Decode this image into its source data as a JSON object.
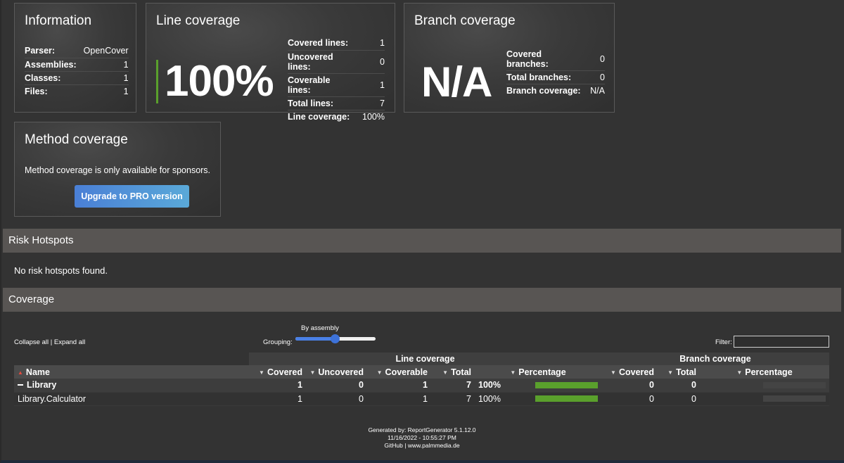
{
  "information": {
    "title": "Information",
    "rows": [
      {
        "key": "Parser:",
        "value": "OpenCover"
      },
      {
        "key": "Assemblies:",
        "value": "1"
      },
      {
        "key": "Classes:",
        "value": "1"
      },
      {
        "key": "Files:",
        "value": "1"
      }
    ]
  },
  "line_coverage": {
    "title": "Line coverage",
    "big_value": "100%",
    "fill_fraction": 1.0,
    "rows": [
      {
        "key": "Covered lines:",
        "value": "1"
      },
      {
        "key": "Uncovered lines:",
        "value": "0"
      },
      {
        "key": "Coverable lines:",
        "value": "1"
      },
      {
        "key": "Total lines:",
        "value": "7"
      },
      {
        "key": "Line coverage:",
        "value": "100%"
      }
    ]
  },
  "branch_coverage": {
    "title": "Branch coverage",
    "big_value": "N/A",
    "rows": [
      {
        "key": "Covered branches:",
        "value": "0"
      },
      {
        "key": "Total branches:",
        "value": "0"
      },
      {
        "key": "Branch coverage:",
        "value": "N/A"
      }
    ]
  },
  "method_coverage": {
    "title": "Method coverage",
    "text": "Method coverage is only available for sponsors.",
    "button": "Upgrade to PRO version"
  },
  "risk_hotspots": {
    "title": "Risk Hotspots",
    "text": "No risk hotspots found."
  },
  "coverage": {
    "title": "Coverage",
    "collapse_all": "Collapse all",
    "separator": "|",
    "expand_all": "Expand all",
    "grouping_label": "Grouping:",
    "grouping_value": "By assembly",
    "filter_label": "Filter:",
    "group_headers": {
      "line": "Line coverage",
      "branch": "Branch coverage"
    },
    "columns": {
      "name": "Name",
      "covered": "Covered",
      "uncovered": "Uncovered",
      "coverable": "Coverable",
      "total": "Total",
      "percentage": "Percentage",
      "b_covered": "Covered",
      "b_total": "Total",
      "b_percentage": "Percentage"
    },
    "rows": [
      {
        "name": "Library",
        "covered": "1",
        "uncovered": "0",
        "coverable": "1",
        "total": "7",
        "percentage": "100%",
        "line_fraction": 1.0,
        "b_covered": "0",
        "b_total": "0"
      },
      {
        "name": "Library.Calculator",
        "covered": "1",
        "uncovered": "0",
        "coverable": "1",
        "total": "7",
        "percentage": "100%",
        "line_fraction": 1.0,
        "b_covered": "0",
        "b_total": "0"
      }
    ]
  },
  "footer": {
    "generated": "Generated by: ReportGenerator 5.1.12.0",
    "date": "11/16/2022 - 10:55:27 PM",
    "github": "GitHub",
    "sep": "|",
    "site": "www.palmmedia.de"
  },
  "colors": {
    "accent_green": "#5aa02c",
    "button_blue": "#4a7fd6",
    "section_bar": "#585553"
  }
}
